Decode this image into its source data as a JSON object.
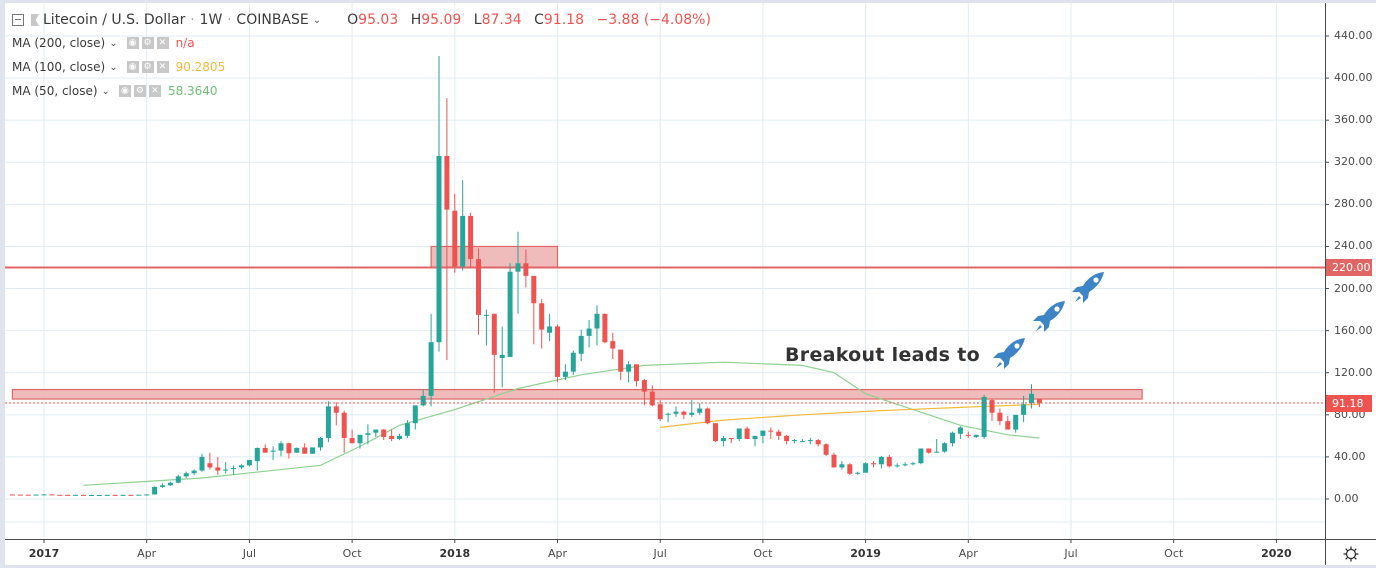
{
  "header": {
    "symbol": "Litecoin / U.S. Dollar",
    "interval": "1W",
    "exchange": "COINBASE",
    "ohlc": {
      "o_label": "O",
      "o": "95.03",
      "h_label": "H",
      "h": "95.09",
      "l_label": "L",
      "l": "87.34",
      "c_label": "C",
      "c": "91.18"
    },
    "change": "−3.88 (−4.08%)"
  },
  "indicators": [
    {
      "label": "MA (200, close)",
      "value": "n/a",
      "color": "#ef5350"
    },
    {
      "label": "MA (100, close)",
      "value": "90.2805",
      "color": "#f6b93b"
    },
    {
      "label": "MA (50, close)",
      "value": "58.3640",
      "color": "#6fbf73"
    }
  ],
  "annotation": {
    "text": "Breakout leads to",
    "icon": "rocket-icon",
    "icon_count": 3,
    "icon_color": "#3d85c6"
  },
  "price_tags": [
    {
      "label": "220.00",
      "price": 220,
      "color": "#e06666"
    },
    {
      "label": "91.18",
      "price": 91.18,
      "color": "#ef5350"
    }
  ],
  "colors": {
    "up": "#26a69a",
    "down": "#ef5350",
    "grid": "#e1ecf2",
    "zone_fill": "#eeb4b4",
    "zone_stroke": "#e06666"
  },
  "chart_data": {
    "type": "candlestick",
    "title": "Litecoin / U.S. Dollar · 1W · COINBASE",
    "xlabel": "",
    "ylabel": "",
    "ylim": [
      -20,
      460
    ],
    "y_ticks": [
      "440.00",
      "400.00",
      "360.00",
      "320.00",
      "280.00",
      "240.00",
      "200.00",
      "160.00",
      "120.00",
      "80.00",
      "40.00",
      "0.00"
    ],
    "y_tick_values": [
      440,
      400,
      360,
      320,
      280,
      240,
      200,
      160,
      120,
      80,
      40,
      0
    ],
    "x_ticks": [
      {
        "label": "2017",
        "week": 0,
        "year": true
      },
      {
        "label": "Apr",
        "week": 13
      },
      {
        "label": "Jul",
        "week": 26
      },
      {
        "label": "Oct",
        "week": 39
      },
      {
        "label": "2018",
        "week": 52,
        "year": true
      },
      {
        "label": "Apr",
        "week": 65
      },
      {
        "label": "Jul",
        "week": 78
      },
      {
        "label": "Oct",
        "week": 91
      },
      {
        "label": "2019",
        "week": 104,
        "year": true
      },
      {
        "label": "Apr",
        "week": 117
      },
      {
        "label": "Jul",
        "week": 130
      },
      {
        "label": "Oct",
        "week": 143
      },
      {
        "label": "2020",
        "week": 156,
        "year": true
      }
    ],
    "grid": true,
    "horizontal_lines": [
      {
        "price": 220,
        "label": "220.00"
      }
    ],
    "zones": [
      {
        "from_week": 49,
        "to_week": 65,
        "low": 220,
        "high": 240
      },
      {
        "from_week": -4,
        "to_week": 139,
        "low": 95,
        "high": 104
      }
    ],
    "current_price": 91.18,
    "candles_ohlc_by_week": [
      [
        -4,
        4.3,
        4.4,
        4.1,
        4.2
      ],
      [
        -3,
        4.2,
        4.3,
        4.1,
        4.1
      ],
      [
        -2,
        4.1,
        4.2,
        3.9,
        4.0
      ],
      [
        -1,
        4.0,
        4.3,
        3.9,
        4.2
      ],
      [
        0,
        4.2,
        4.6,
        4.0,
        4.4
      ],
      [
        1,
        4.4,
        4.5,
        3.9,
        4.0
      ],
      [
        2,
        4.0,
        4.1,
        3.8,
        3.9
      ],
      [
        3,
        3.9,
        4.0,
        3.7,
        3.8
      ],
      [
        4,
        3.8,
        4.0,
        3.7,
        3.9
      ],
      [
        5,
        3.9,
        4.0,
        3.6,
        3.7
      ],
      [
        6,
        3.7,
        3.9,
        3.6,
        3.8
      ],
      [
        7,
        3.8,
        3.9,
        3.7,
        3.8
      ],
      [
        8,
        3.8,
        4.0,
        3.7,
        3.9
      ],
      [
        9,
        3.9,
        4.0,
        3.6,
        3.7
      ],
      [
        10,
        3.7,
        4.0,
        3.6,
        3.9
      ],
      [
        11,
        3.9,
        4.0,
        3.7,
        3.8
      ],
      [
        12,
        3.8,
        4.2,
        3.7,
        4.1
      ],
      [
        13,
        4.1,
        4.5,
        3.9,
        4.3
      ],
      [
        14,
        4.3,
        12.0,
        4.2,
        11.5
      ],
      [
        15,
        11.5,
        15.0,
        10.5,
        13.0
      ],
      [
        16,
        13.0,
        16.5,
        12.5,
        15.5
      ],
      [
        17,
        15.5,
        23.0,
        15.0,
        21.5
      ],
      [
        18,
        21.5,
        26.0,
        20.0,
        24.5
      ],
      [
        19,
        24.5,
        28.0,
        22.5,
        27.0
      ],
      [
        20,
        27.0,
        43.0,
        26.0,
        40.0
      ],
      [
        21,
        34.0,
        44.0,
        28.0,
        30.0
      ],
      [
        22,
        30.0,
        40.0,
        23.0,
        27.0
      ],
      [
        23,
        27.0,
        35.0,
        24.0,
        28.0
      ],
      [
        24,
        29.0,
        32.0,
        23.0,
        29.5
      ],
      [
        25,
        30.0,
        33.0,
        28.5,
        32.0
      ],
      [
        26,
        32.0,
        37.0,
        31.0,
        37.0
      ],
      [
        27,
        36.0,
        49.0,
        27.0,
        48.5
      ],
      [
        28,
        48.5,
        52.0,
        44.0,
        44.0
      ],
      [
        29,
        45.0,
        50.0,
        37.0,
        46.0
      ],
      [
        30,
        46.0,
        55.0,
        40.5,
        53.0
      ],
      [
        31,
        53.0,
        53.5,
        38.5,
        43.5
      ],
      [
        32,
        44.0,
        49.0,
        44.0,
        48.5
      ],
      [
        33,
        49.0,
        53.0,
        44.0,
        43.0
      ],
      [
        34,
        43.0,
        49.0,
        43.0,
        49.0
      ],
      [
        35,
        49.0,
        59.0,
        46.0,
        58.0
      ],
      [
        36,
        58.0,
        93.0,
        54.0,
        88.0
      ],
      [
        37,
        88.0,
        92.0,
        70.0,
        82.0
      ],
      [
        38,
        82.0,
        84.0,
        44.0,
        58.0
      ],
      [
        39,
        58.0,
        66.0,
        54.0,
        53.0
      ],
      [
        40,
        53.0,
        60.0,
        48.0,
        61.0
      ],
      [
        41,
        61.0,
        71.0,
        52.0,
        62.5
      ],
      [
        42,
        63.0,
        65.0,
        59.0,
        66.0
      ],
      [
        43,
        66.0,
        66.5,
        56.0,
        59.0
      ],
      [
        44,
        60.0,
        66.0,
        55.0,
        57.0
      ],
      [
        45,
        57.0,
        62.0,
        56.0,
        60.0
      ],
      [
        46,
        60.0,
        75.0,
        58.0,
        72.0
      ],
      [
        47,
        72.0,
        87.0,
        66.0,
        89.0
      ],
      [
        48,
        89.0,
        104.0,
        88.0,
        98.0
      ],
      [
        49,
        98.0,
        176.0,
        88.0,
        149.0
      ],
      [
        50,
        149.0,
        421.0,
        140.0,
        326.0
      ],
      [
        51,
        326.0,
        381.0,
        132.0,
        275.0
      ],
      [
        52,
        274.0,
        290.0,
        215.0,
        221.0
      ],
      [
        53,
        221.0,
        303.0,
        217.0,
        269.0
      ],
      [
        54,
        269.0,
        272.0,
        220.0,
        228.0
      ],
      [
        55,
        228.0,
        238.0,
        156.0,
        175.0
      ],
      [
        56,
        175.0,
        180.0,
        146.0,
        175.0
      ],
      [
        57,
        176.0,
        176.0,
        101.0,
        137.0
      ],
      [
        58,
        134.0,
        164.0,
        106.0,
        137.0
      ],
      [
        59,
        135.0,
        224.0,
        135.0,
        216.0
      ],
      [
        60,
        216.0,
        254.0,
        176.0,
        224.0
      ],
      [
        61,
        224.0,
        237.0,
        201.0,
        212.0
      ],
      [
        62,
        212.0,
        212.0,
        147.0,
        186.0
      ],
      [
        63,
        186.0,
        190.0,
        143.0,
        161.0
      ],
      [
        64,
        158.0,
        176.0,
        150.0,
        164.0
      ],
      [
        65,
        164.0,
        166.0,
        111.0,
        116.0
      ],
      [
        66,
        116.0,
        128.0,
        113.0,
        121.0
      ],
      [
        67,
        121.0,
        141.0,
        118.0,
        139.0
      ],
      [
        68,
        138.0,
        161.0,
        131.0,
        155.0
      ],
      [
        69,
        155.0,
        170.0,
        144.0,
        162.0
      ],
      [
        70,
        162.0,
        184.0,
        146.0,
        176.0
      ],
      [
        71,
        176.0,
        176.0,
        148.0,
        149.0
      ],
      [
        72,
        150.0,
        158.0,
        133.0,
        143.0
      ],
      [
        73,
        142.0,
        142.0,
        113.0,
        121.0
      ],
      [
        74,
        121.0,
        131.0,
        111.0,
        128.0
      ],
      [
        75,
        128.0,
        128.0,
        107.0,
        112.0
      ],
      [
        76,
        113.0,
        114.0,
        89.0,
        102.0
      ],
      [
        77,
        102.0,
        108.0,
        88.0,
        89.0
      ],
      [
        78,
        90.0,
        94.0,
        74.0,
        76.0
      ],
      [
        79,
        81.0,
        82.0,
        73.0,
        81.0
      ],
      [
        80,
        81.0,
        88.0,
        78.0,
        83.0
      ],
      [
        81,
        83.0,
        84.0,
        76.0,
        80.0
      ],
      [
        82,
        80.0,
        94.0,
        78.0,
        82.0
      ],
      [
        83,
        82.0,
        91.0,
        80.0,
        86.0
      ],
      [
        84,
        86.0,
        87.0,
        71.0,
        72.0
      ],
      [
        85,
        72.0,
        72.0,
        54.0,
        55.0
      ],
      [
        86,
        55.0,
        60.0,
        50.0,
        58.0
      ],
      [
        87,
        58.0,
        58.0,
        53.0,
        57.0
      ],
      [
        88,
        57.0,
        66.0,
        55.0,
        67.0
      ],
      [
        89,
        67.0,
        69.0,
        57.0,
        57.0
      ],
      [
        90,
        57.0,
        60.0,
        50.0,
        60.0
      ],
      [
        91,
        60.0,
        64.0,
        53.0,
        65.0
      ],
      [
        92,
        65.0,
        68.0,
        57.0,
        64.0
      ],
      [
        93,
        64.0,
        66.0,
        56.0,
        60.0
      ],
      [
        94,
        60.0,
        61.0,
        52.0,
        55.0
      ],
      [
        95,
        55.0,
        57.0,
        53.0,
        56.0
      ],
      [
        96,
        55.0,
        57.0,
        54.0,
        55.0
      ],
      [
        97,
        55.0,
        58.0,
        52.0,
        56.0
      ],
      [
        98,
        56.0,
        57.0,
        50.0,
        52.0
      ],
      [
        99,
        52.0,
        53.0,
        41.0,
        42.0
      ],
      [
        100,
        42.0,
        44.0,
        30.0,
        30.0
      ],
      [
        101,
        30.0,
        36.0,
        28.0,
        33.0
      ],
      [
        102,
        33.0,
        34.0,
        23.0,
        24.0
      ],
      [
        103,
        24.0,
        26.0,
        23.0,
        25.0
      ],
      [
        104,
        25.0,
        35.0,
        25.0,
        34.0
      ],
      [
        105,
        34.0,
        36.0,
        30.0,
        33.0
      ],
      [
        106,
        33.0,
        41.0,
        29.0,
        40.0
      ],
      [
        107,
        40.0,
        42.0,
        30.0,
        31.0
      ],
      [
        108,
        31.0,
        34.0,
        30.0,
        32.0
      ],
      [
        109,
        32.0,
        35.0,
        31.0,
        33.0
      ],
      [
        110,
        33.0,
        35.0,
        32.0,
        34.0
      ],
      [
        111,
        34.0,
        48.0,
        33.0,
        48.0
      ],
      [
        112,
        48.0,
        48.0,
        43.0,
        44.0
      ],
      [
        113,
        44.0,
        57.0,
        44.0,
        45.0
      ],
      [
        114,
        45.0,
        54.0,
        44.0,
        53.0
      ],
      [
        115,
        53.0,
        64.0,
        50.0,
        63.0
      ],
      [
        116,
        62.0,
        69.0,
        57.0,
        68.0
      ],
      [
        117,
        61.0,
        64.0,
        58.0,
        60.0
      ],
      [
        118,
        59.0,
        61.0,
        58.0,
        61.0
      ],
      [
        119,
        59.0,
        99.0,
        57.0,
        97.0
      ],
      [
        120,
        94.0,
        95.0,
        74.0,
        82.0
      ],
      [
        121,
        82.0,
        86.0,
        70.0,
        74.0
      ],
      [
        122,
        74.0,
        79.0,
        66.0,
        66.0
      ],
      [
        123,
        66.0,
        79.0,
        63.0,
        80.0
      ],
      [
        124,
        80.0,
        98.0,
        73.0,
        90.0
      ],
      [
        125,
        91.0,
        109.0,
        86.0,
        100.0
      ],
      [
        126,
        95.03,
        95.09,
        87.34,
        91.18
      ]
    ],
    "ma50_approx": [
      [
        5,
        13
      ],
      [
        20,
        20
      ],
      [
        35,
        32
      ],
      [
        40,
        50
      ],
      [
        45,
        70
      ],
      [
        52,
        85
      ],
      [
        60,
        105
      ],
      [
        68,
        118
      ],
      [
        76,
        127
      ],
      [
        86,
        130
      ],
      [
        96,
        127
      ],
      [
        100,
        120
      ],
      [
        104,
        100
      ],
      [
        110,
        85
      ],
      [
        116,
        70
      ],
      [
        122,
        61
      ],
      [
        126,
        58
      ]
    ],
    "ma100_approx": [
      [
        78,
        68
      ],
      [
        86,
        75
      ],
      [
        96,
        80
      ],
      [
        106,
        84
      ],
      [
        116,
        87
      ],
      [
        126,
        90
      ]
    ]
  }
}
